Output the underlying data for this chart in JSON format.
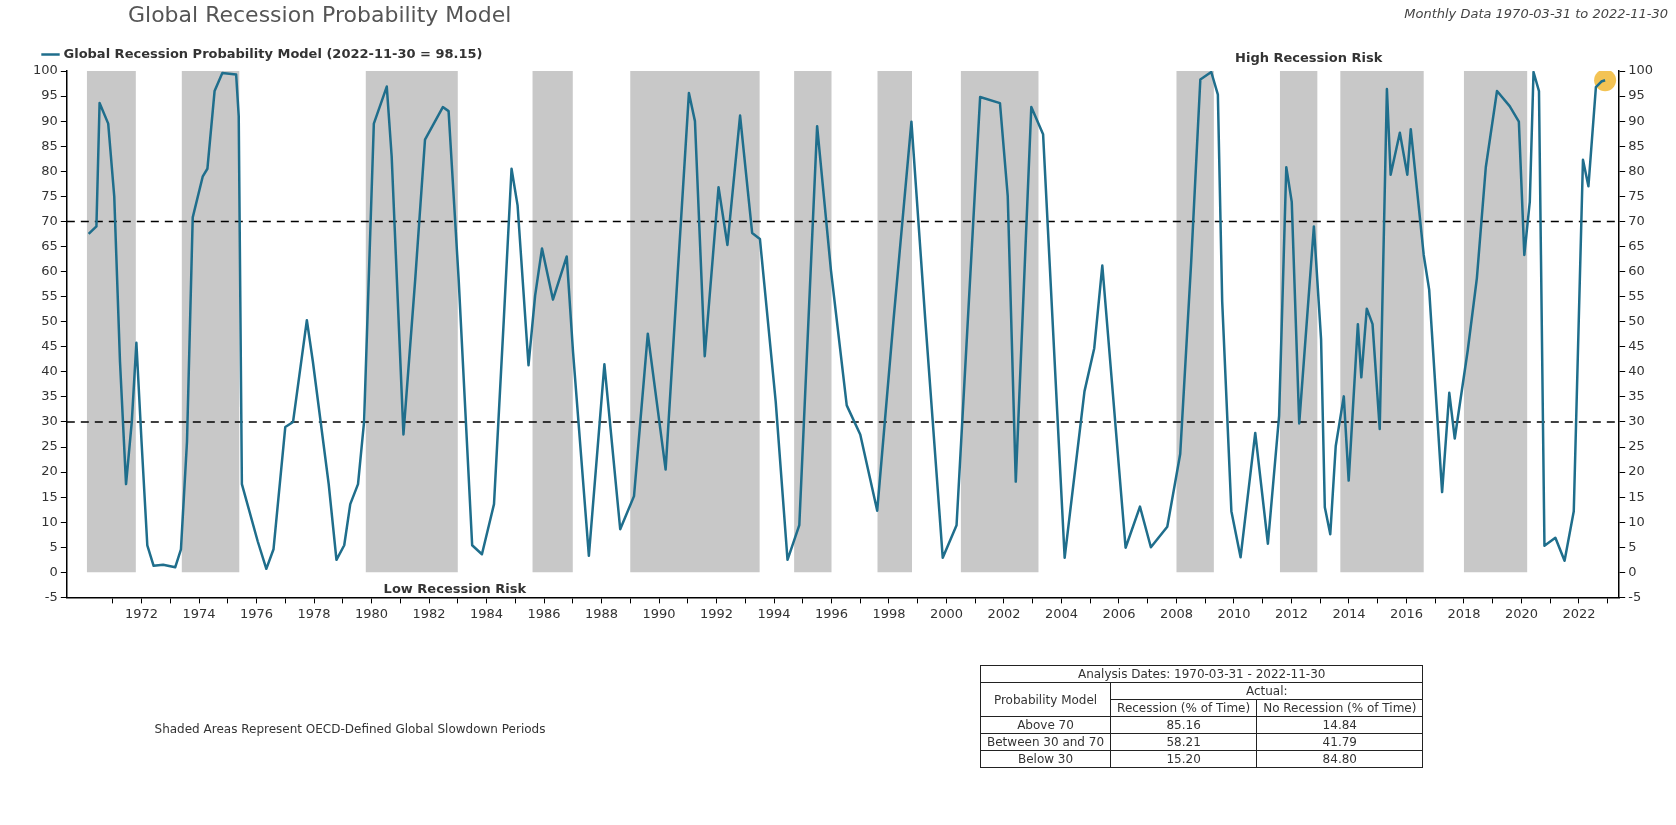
{
  "chart_data": {
    "type": "line",
    "title": "Global Recession Probability Model",
    "subtitle": "Monthly Data 1970-03-31 to 2022-11-30",
    "series": [
      {
        "name": "Global Recession Probability Model (2022-11-30 = 98.15)",
        "color": "#1f6e8c",
        "x": [
          1970.16,
          1970.43,
          1970.54,
          1970.84,
          1971.05,
          1971.25,
          1971.46,
          1971.66,
          1971.82,
          1972.0,
          1972.2,
          1972.42,
          1972.75,
          1973.17,
          1973.37,
          1973.58,
          1973.78,
          1974.13,
          1974.29,
          1974.54,
          1974.81,
          1975.29,
          1975.38,
          1975.49,
          1976.04,
          1976.34,
          1976.59,
          1977.0,
          1977.27,
          1977.75,
          1977.96,
          1978.51,
          1978.78,
          1979.05,
          1979.26,
          1979.53,
          1979.74,
          1980.08,
          1980.53,
          1980.7,
          1981.11,
          1981.52,
          1981.86,
          1982.48,
          1982.68,
          1983.03,
          1983.5,
          1983.84,
          1984.26,
          1984.6,
          1984.87,
          1985.08,
          1985.46,
          1985.69,
          1985.93,
          1986.31,
          1986.79,
          1987.01,
          1987.56,
          1988.1,
          1988.65,
          1989.13,
          1989.61,
          1990.23,
          1990.64,
          1991.04,
          1991.25,
          1991.59,
          1992.07,
          1992.38,
          1992.82,
          1993.24,
          1993.51,
          1994.06,
          1994.47,
          1994.88,
          1995.5,
          1995.98,
          1996.53,
          1997.0,
          1997.59,
          1998.16,
          1998.78,
          1999.26,
          1999.87,
          2000.35,
          2001.17,
          2001.86,
          2002.13,
          2002.41,
          2002.95,
          2003.36,
          2004.11,
          2004.8,
          2005.14,
          2005.42,
          2006.23,
          2006.73,
          2007.11,
          2007.68,
          2008.13,
          2008.51,
          2008.83,
          2009.21,
          2009.44,
          2009.59,
          2009.91,
          2010.23,
          2010.74,
          2011.18,
          2011.57,
          2011.82,
          2012.01,
          2012.27,
          2012.78,
          2013.03,
          2013.16,
          2013.35,
          2013.54,
          2013.82,
          2013.99,
          2014.31,
          2014.43,
          2014.62,
          2014.82,
          2015.07,
          2015.32,
          2015.45,
          2015.77,
          2016.03,
          2016.15,
          2016.6,
          2016.79,
          2017.24,
          2017.49,
          2017.68,
          2018.13,
          2018.45,
          2018.76,
          2019.15,
          2019.59,
          2019.91,
          2020.1,
          2020.29,
          2020.42,
          2020.61,
          2020.8,
          2021.18,
          2021.5,
          2021.82,
          2022.14,
          2022.33,
          2022.59,
          2022.78,
          2022.91
        ],
        "values": [
          67.5,
          69,
          93.6,
          89.5,
          75,
          42,
          17.6,
          30,
          45.8,
          26,
          5.4,
          1.3,
          1.5,
          1.0,
          4.6,
          26,
          70.8,
          79,
          80.5,
          96,
          99.6,
          99.3,
          91,
          17.6,
          6.2,
          0.7,
          4.6,
          29,
          30,
          50.3,
          42,
          17.6,
          2.5,
          5.4,
          13.6,
          17.6,
          30,
          89.5,
          96.9,
          83,
          27.5,
          58.5,
          86.3,
          92.8,
          92,
          58.5,
          5.4,
          3.6,
          13.6,
          50.3,
          80.5,
          73.2,
          41.3,
          55.2,
          64.6,
          54.4,
          63,
          43.9,
          3.3,
          41.5,
          8.6,
          15.2,
          47.6,
          20.5,
          58.7,
          95.6,
          90,
          43.1,
          76.8,
          65.3,
          91.1,
          67.7,
          66.5,
          34,
          2.5,
          9.4,
          89,
          60.3,
          33.3,
          27.5,
          12.3,
          50.5,
          89.9,
          50.5,
          2.9,
          9.4,
          94.8,
          93.6,
          75.1,
          18.1,
          92.8,
          87.4,
          2.9,
          36.1,
          44.7,
          61.2,
          4.9,
          13.1,
          5.0,
          9.1,
          23.6,
          61.7,
          98.3,
          99.8,
          95.3,
          54.1,
          12.2,
          3.0,
          27.8,
          5.7,
          31.2,
          80.8,
          73.9,
          29.7,
          69,
          46.5,
          13,
          7.6,
          25.2,
          35.1,
          18.3,
          49.5,
          38.9,
          52.6,
          49.5,
          28.6,
          96.4,
          79.3,
          87.7,
          79.3,
          88.4,
          63.3,
          56.4,
          16,
          35.8,
          26.7,
          44.2,
          58.7,
          80.8,
          96,
          93,
          89.9,
          63.3,
          73.9,
          99.8,
          96,
          5.3,
          6.9,
          2.3,
          12.2,
          82.3,
          77,
          96.8,
          97.9,
          98.15
        ]
      },
      {
        "type": "scatter",
        "color": "#f0b429",
        "marker": "circle",
        "x": [
          2022.91
        ],
        "values": [
          98.15
        ]
      }
    ],
    "xlim": [
      1969.4,
      2023.4
    ],
    "xticks": [
      {
        "value": 1971,
        "label": null
      },
      1972,
      {
        "value": 1973,
        "label": null
      },
      1974,
      {
        "value": 1975,
        "label": null
      },
      1976,
      {
        "value": 1977,
        "label": null
      },
      1978,
      {
        "value": 1979,
        "label": null
      },
      1980,
      {
        "value": 1981,
        "label": null
      },
      1982,
      {
        "value": 1983,
        "label": null
      },
      1984,
      {
        "value": 1985,
        "label": null
      },
      1986,
      {
        "value": 1987,
        "label": null
      },
      1988,
      {
        "value": 1989,
        "label": null
      },
      1990,
      {
        "value": 1991,
        "label": null
      },
      1992,
      {
        "value": 1993,
        "label": null
      },
      1994,
      {
        "value": 1995,
        "label": null
      },
      1996,
      {
        "value": 1997,
        "label": null
      },
      1998,
      {
        "value": 1999,
        "label": null
      },
      2000,
      {
        "value": 2001,
        "label": null
      },
      2002,
      {
        "value": 2003,
        "label": null
      },
      2004,
      {
        "value": 2005,
        "label": null
      },
      2006,
      {
        "value": 2007,
        "label": null
      },
      2008,
      {
        "value": 2009,
        "label": null
      },
      2010,
      {
        "value": 2011,
        "label": null
      },
      2012,
      {
        "value": 2013,
        "label": null
      },
      2014,
      {
        "value": 2015,
        "label": null
      },
      2016,
      {
        "value": 2017,
        "label": null
      },
      2018,
      {
        "value": 2019,
        "label": null
      },
      2020,
      {
        "value": 2021,
        "label": null
      },
      2022,
      {
        "value": 2023,
        "label": null
      }
    ],
    "ylim": [
      -5,
      100
    ],
    "yticks": [
      -5,
      0,
      5,
      10,
      15,
      20,
      25,
      30,
      35,
      40,
      45,
      50,
      55,
      60,
      65,
      70,
      75,
      80,
      85,
      90,
      95,
      100
    ],
    "y2lim": [
      -5,
      100
    ],
    "y2ticks": [
      -5,
      0,
      5,
      10,
      15,
      20,
      25,
      30,
      35,
      40,
      45,
      50,
      55,
      60,
      65,
      70,
      75,
      80,
      85,
      90,
      95,
      100
    ],
    "ref_lines": [
      {
        "axis": "y",
        "value": 30,
        "color": "#000000",
        "line_style": "dashed"
      },
      {
        "axis": "y",
        "value": 70,
        "color": "#000000",
        "line_style": "dashed"
      }
    ],
    "bands": [
      {
        "axis": "x",
        "from": 1970.1,
        "to": 1971.8,
        "color": "#c8c8c8"
      },
      {
        "axis": "x",
        "from": 1973.4,
        "to": 1975.4,
        "color": "#c8c8c8"
      },
      {
        "axis": "x",
        "from": 1979.8,
        "to": 1983.0,
        "color": "#c8c8c8"
      },
      {
        "axis": "x",
        "from": 1985.6,
        "to": 1987.0,
        "color": "#c8c8c8"
      },
      {
        "axis": "x",
        "from": 1989.0,
        "to": 1993.5,
        "color": "#c8c8c8"
      },
      {
        "axis": "x",
        "from": 1994.7,
        "to": 1996.0,
        "color": "#c8c8c8"
      },
      {
        "axis": "x",
        "from": 1997.6,
        "to": 1998.8,
        "color": "#c8c8c8"
      },
      {
        "axis": "x",
        "from": 2000.5,
        "to": 2003.2,
        "color": "#c8c8c8"
      },
      {
        "axis": "x",
        "from": 2008.0,
        "to": 2009.3,
        "color": "#c8c8c8"
      },
      {
        "axis": "x",
        "from": 2011.6,
        "to": 2012.9,
        "color": "#c8c8c8"
      },
      {
        "axis": "x",
        "from": 2013.7,
        "to": 2016.6,
        "color": "#c8c8c8"
      },
      {
        "axis": "x",
        "from": 2018.0,
        "to": 2020.2,
        "color": "#c8c8c8"
      }
    ],
    "legend": "top left",
    "grid": false,
    "marker": "none",
    "line_style": "solid",
    "annotations": [
      "High Recession Risk",
      "Low Recession Risk",
      "Shaded Areas Represent OECD-Defined Global Slowdown Periods",
      "Analysis Dates: 1970-03-31 - 2022-11-30",
      "Actual:",
      "Probability Model",
      "Recession (% of Time)",
      "No Recession (% of Time)",
      "Above 70",
      "85.16",
      "14.84",
      "Between 30 and 70",
      "58.21",
      "41.79",
      "Below 30",
      "15.20",
      "84.80"
    ]
  }
}
